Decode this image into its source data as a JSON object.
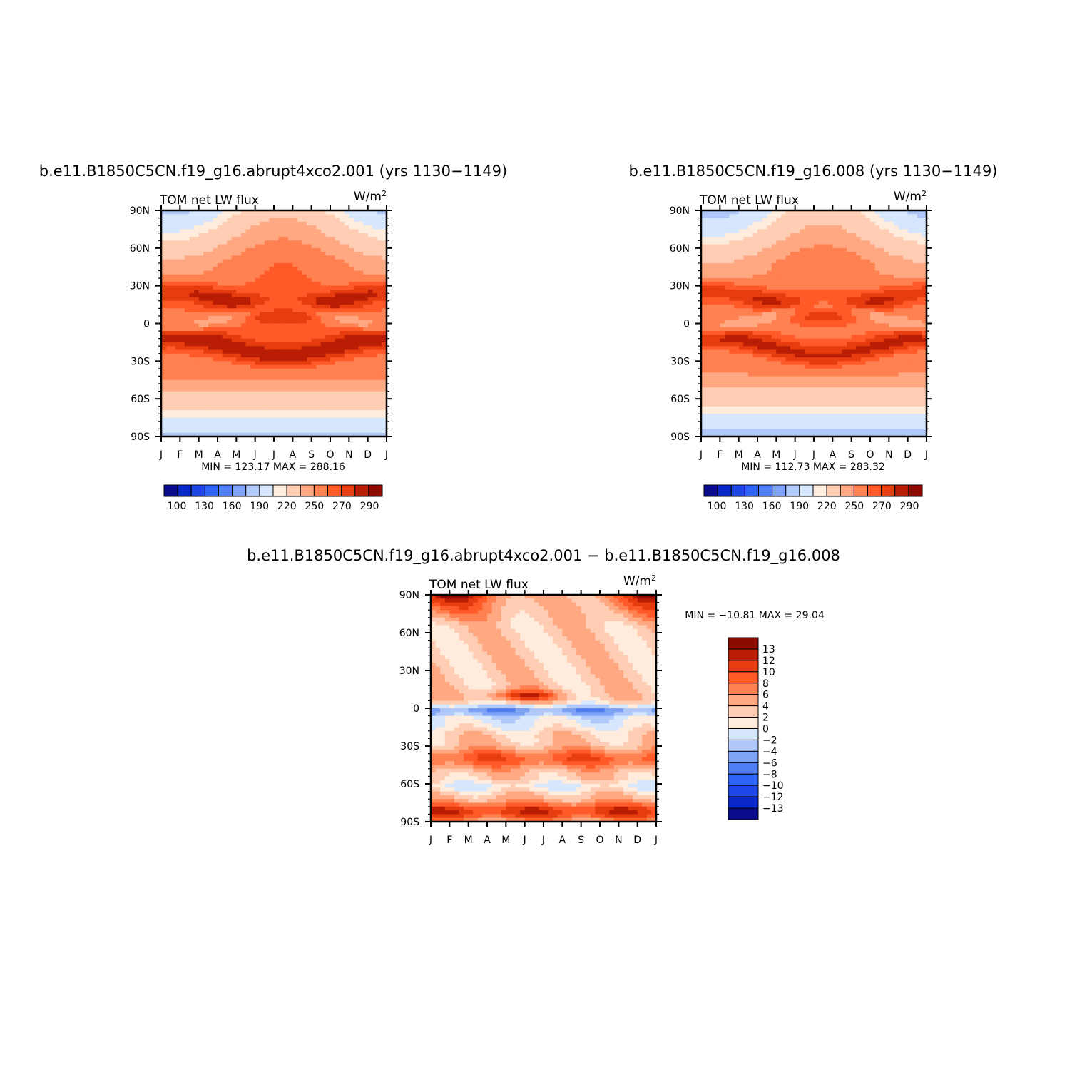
{
  "palettes": {
    "abs": [
      "#0a0a8c",
      "#0a28c8",
      "#1e46e6",
      "#2d64f5",
      "#507ff5",
      "#7ea2f5",
      "#b0c8fa",
      "#d6e6fc",
      "#ffecdc",
      "#ffcdb4",
      "#ffa882",
      "#ff8050",
      "#ff5a28",
      "#e63c10",
      "#b91e05",
      "#8c0a00"
    ],
    "diff": [
      "#0a0a8c",
      "#0a28c8",
      "#1e46e6",
      "#2d64f5",
      "#507ff5",
      "#7ea2f5",
      "#b0c8fa",
      "#d6e6fc",
      "#ffecdc",
      "#ffcdb4",
      "#ffa882",
      "#ff8050",
      "#ff5a28",
      "#e63c10",
      "#b91e05",
      "#8c0a00"
    ]
  },
  "chart_data": [
    {
      "type": "heatmap",
      "title": "b.e11.B1850C5CN.f19_g16.abrupt4xco2.001 (yrs 1130−1149)",
      "left_label": "TOM  net  LW  flux",
      "units_base": "W/m",
      "units_sup": "2",
      "x_ticks": [
        "J",
        "F",
        "M",
        "A",
        "M",
        "J",
        "J",
        "A",
        "S",
        "O",
        "N",
        "D",
        "J"
      ],
      "y_ticks": [
        "90N",
        "60N",
        "30N",
        "0",
        "30S",
        "60S",
        "90S"
      ],
      "y_range": [
        -90,
        90
      ],
      "stats_text": "MIN  =  123.17  MAX  =  288.16",
      "min": 123.17,
      "max": 288.16,
      "colorbar_labels": [
        "100",
        "130",
        "160",
        "190",
        "220",
        "250",
        "270",
        "290"
      ],
      "palette": "abs"
    },
    {
      "type": "heatmap",
      "title": "b.e11.B1850C5CN.f19_g16.008 (yrs 1130−1149)",
      "left_label": "TOM  net  LW  flux",
      "units_base": "W/m",
      "units_sup": "2",
      "x_ticks": [
        "J",
        "F",
        "M",
        "A",
        "M",
        "J",
        "J",
        "A",
        "S",
        "O",
        "N",
        "D",
        "J"
      ],
      "y_ticks": [
        "90N",
        "60N",
        "30N",
        "0",
        "30S",
        "60S",
        "90S"
      ],
      "y_range": [
        -90,
        90
      ],
      "stats_text": "MIN  =  112.73  MAX  =  283.32",
      "min": 112.73,
      "max": 283.32,
      "colorbar_labels": [
        "100",
        "130",
        "160",
        "190",
        "220",
        "250",
        "270",
        "290"
      ],
      "palette": "abs"
    },
    {
      "type": "heatmap",
      "title": "b.e11.B1850C5CN.f19_g16.abrupt4xco2.001  −  b.e11.B1850C5CN.f19_g16.008",
      "left_label": "TOM  net  LW  flux",
      "units_base": "W/m",
      "units_sup": "2",
      "x_ticks": [
        "J",
        "F",
        "M",
        "A",
        "M",
        "J",
        "J",
        "A",
        "S",
        "O",
        "N",
        "D",
        "J"
      ],
      "y_ticks": [
        "90N",
        "60N",
        "30N",
        "0",
        "30S",
        "60S",
        "90S"
      ],
      "y_range": [
        -90,
        90
      ],
      "stats_text": "MIN  =  −10.81  MAX  =   29.04",
      "min": -10.81,
      "max": 29.04,
      "colorbar_labels": [
        "13",
        "12",
        "10",
        "8",
        "6",
        "4",
        "2",
        "0",
        "−2",
        "−4",
        "−6",
        "−8",
        "−10",
        "−12",
        "−13"
      ],
      "palette": "diff"
    }
  ]
}
